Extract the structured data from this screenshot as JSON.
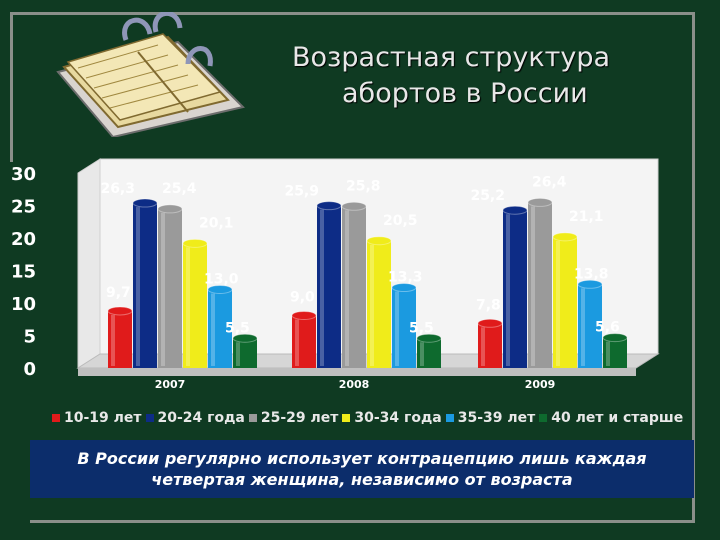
{
  "slide": {
    "title_line1": "Возрастная структура",
    "title_line2": "абортов в России",
    "note_line1": "В России регулярно использует контрацепцию лишь каждая",
    "note_line2": "четвертая женщина, независимо от возраста",
    "book_icon": "open-book-icon"
  },
  "chart_data": {
    "type": "bar",
    "categories": [
      "2007",
      "2008",
      "2009"
    ],
    "ylim": [
      0,
      30
    ],
    "yticks": [
      "0",
      "5",
      "10",
      "15",
      "20",
      "25",
      "30"
    ],
    "grid": false,
    "legend_position": "bottom",
    "series": [
      {
        "name": "10-19 лет",
        "color": "#e01b1b",
        "values": [
          9.7,
          9.0,
          7.8
        ],
        "labels": [
          "9,7",
          "9,0",
          "7,8"
        ]
      },
      {
        "name": "20-24 года",
        "color": "#0d2c86",
        "values": [
          26.3,
          25.9,
          25.2
        ],
        "labels": [
          "26,3",
          "25,9",
          "25,2"
        ]
      },
      {
        "name": "25-29 лет",
        "color": "#9a9a9a",
        "values": [
          25.4,
          25.8,
          26.4
        ],
        "labels": [
          "25,4",
          "25,8",
          "26,4"
        ]
      },
      {
        "name": "30-34 года",
        "color": "#f0ec1a",
        "values": [
          20.1,
          20.5,
          21.1
        ],
        "labels": [
          "20,1",
          "20,5",
          "21,1"
        ]
      },
      {
        "name": "35-39 лет",
        "color": "#1b9ae0",
        "values": [
          13.0,
          13.3,
          13.8
        ],
        "labels": [
          "13,0",
          "13,3",
          "13,8"
        ]
      },
      {
        "name": "40 лет и старше",
        "color": "#0e6a2e",
        "values": [
          5.5,
          5.5,
          5.6
        ],
        "labels": [
          "5,5",
          "5,5",
          "5,6"
        ]
      }
    ]
  }
}
